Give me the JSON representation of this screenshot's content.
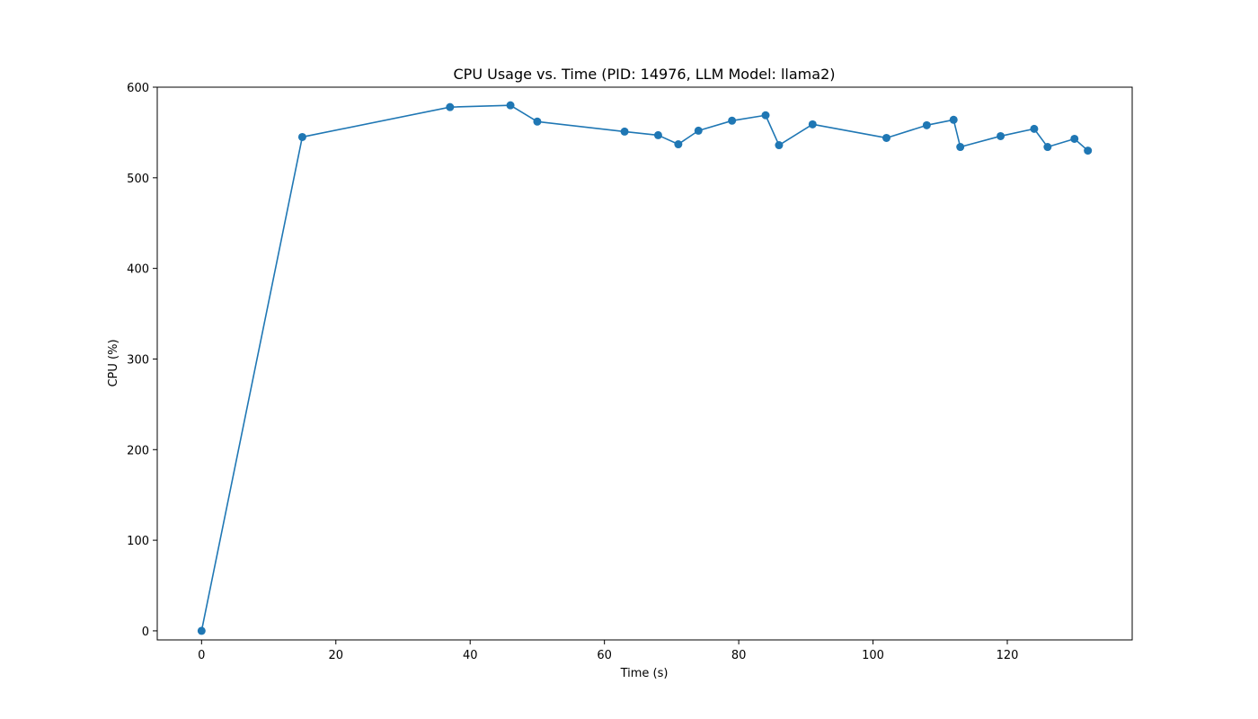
{
  "chart_data": {
    "type": "line",
    "title": "CPU Usage vs. Time (PID: 14976, LLM Model: llama2)",
    "xlabel": "Time (s)",
    "ylabel": "CPU (%)",
    "xlim": [
      -6.6,
      138.6
    ],
    "ylim": [
      -10,
      600
    ],
    "xticks": [
      0,
      20,
      40,
      60,
      80,
      100,
      120
    ],
    "yticks": [
      0,
      100,
      200,
      300,
      400,
      500,
      600
    ],
    "grid": false,
    "line_color": "#1f77b4",
    "marker": "circle",
    "series": [
      {
        "x": [
          0,
          15,
          37,
          46,
          50,
          63,
          68,
          71,
          74,
          79,
          84,
          86,
          91,
          102,
          108,
          112,
          113,
          119,
          124,
          126,
          130,
          132
        ],
        "y": [
          0,
          545,
          578,
          580,
          562,
          551,
          547,
          537,
          552,
          563,
          569,
          536,
          559,
          544,
          558,
          564,
          534,
          546,
          554,
          534,
          543,
          530
        ]
      }
    ]
  }
}
